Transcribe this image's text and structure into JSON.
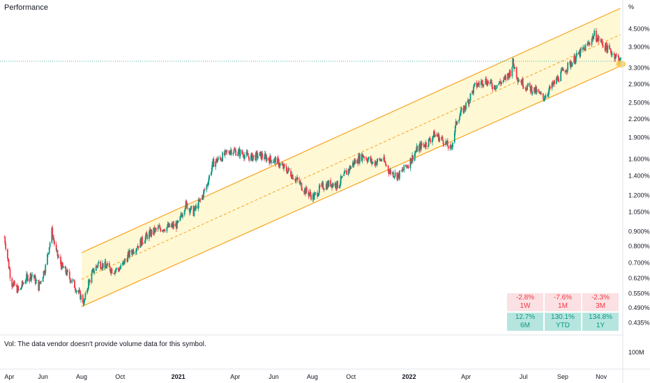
{
  "header": {
    "title": "Performance",
    "axis_unit": "%",
    "vol_note": "Vol: The data vendor doesn't provide volume data for this symbol.",
    "vol_scale": "100M"
  },
  "performance": [
    {
      "value": "-2.8%",
      "period": "1W",
      "trend": "neg"
    },
    {
      "value": "-7.6%",
      "period": "1M",
      "trend": "neg"
    },
    {
      "value": "-2.3%",
      "period": "3M",
      "trend": "neg"
    },
    {
      "value": "12.7%",
      "period": "6M",
      "trend": "pos"
    },
    {
      "value": "130.1%",
      "period": "YTD",
      "trend": "pos"
    },
    {
      "value": "134.8%",
      "period": "1Y",
      "trend": "pos"
    }
  ],
  "chart_data": {
    "type": "candlestick",
    "y_scale": "log",
    "ylim": [
      0.42,
      5.3
    ],
    "y_ticks": [
      {
        "label": "4.500%",
        "value": 4.5
      },
      {
        "label": "3.900%",
        "value": 3.9
      },
      {
        "label": "3.300%",
        "value": 3.3
      },
      {
        "label": "2.900%",
        "value": 2.9
      },
      {
        "label": "2.500%",
        "value": 2.5
      },
      {
        "label": "2.200%",
        "value": 2.2
      },
      {
        "label": "1.900%",
        "value": 1.9
      },
      {
        "label": "1.600%",
        "value": 1.6
      },
      {
        "label": "1.400%",
        "value": 1.4
      },
      {
        "label": "1.200%",
        "value": 1.2
      },
      {
        "label": "1.050%",
        "value": 1.05
      },
      {
        "label": "0.900%",
        "value": 0.9
      },
      {
        "label": "0.800%",
        "value": 0.8
      },
      {
        "label": "0.700%",
        "value": 0.7
      },
      {
        "label": "0.620%",
        "value": 0.62
      },
      {
        "label": "0.550%",
        "value": 0.55
      },
      {
        "label": "0.490%",
        "value": 0.49
      },
      {
        "label": "0.435%",
        "value": 0.435
      }
    ],
    "x_ticks": [
      {
        "label": "Apr",
        "date": "2020-04-01",
        "bold": false
      },
      {
        "label": "Jun",
        "date": "2020-06-01",
        "bold": false
      },
      {
        "label": "Aug",
        "date": "2020-08-01",
        "bold": false
      },
      {
        "label": "Oct",
        "date": "2020-10-01",
        "bold": false
      },
      {
        "label": "2021",
        "date": "2021-01-01",
        "bold": true
      },
      {
        "label": "Apr",
        "date": "2021-04-01",
        "bold": false
      },
      {
        "label": "Jun",
        "date": "2021-06-01",
        "bold": false
      },
      {
        "label": "Aug",
        "date": "2021-08-01",
        "bold": false
      },
      {
        "label": "Oct",
        "date": "2021-10-01",
        "bold": false
      },
      {
        "label": "2022",
        "date": "2022-01-01",
        "bold": true
      },
      {
        "label": "Apr",
        "date": "2022-04-01",
        "bold": false
      },
      {
        "label": "Jul",
        "date": "2022-07-01",
        "bold": false
      },
      {
        "label": "Sep",
        "date": "2022-09-01",
        "bold": false
      },
      {
        "label": "Nov",
        "date": "2022-11-01",
        "bold": false
      }
    ],
    "xlim": [
      "2020-03-25",
      "2022-12-05"
    ],
    "price_line": 3.48,
    "channel": {
      "start_date": "2020-08-01",
      "end_date": "2022-12-01",
      "upper": [
        0.76,
        5.3
      ],
      "middle": [
        0.615,
        4.3
      ],
      "lower": [
        0.495,
        3.35
      ]
    },
    "series": [
      {
        "date": "2020-04-01",
        "value": 0.86
      },
      {
        "date": "2020-04-12",
        "value": 0.6
      },
      {
        "date": "2020-04-24",
        "value": 0.56
      },
      {
        "date": "2020-05-05",
        "value": 0.62
      },
      {
        "date": "2020-05-15",
        "value": 0.64
      },
      {
        "date": "2020-05-25",
        "value": 0.58
      },
      {
        "date": "2020-06-05",
        "value": 0.68
      },
      {
        "date": "2020-06-15",
        "value": 0.9
      },
      {
        "date": "2020-06-22",
        "value": 0.76
      },
      {
        "date": "2020-07-01",
        "value": 0.68
      },
      {
        "date": "2020-07-10",
        "value": 0.64
      },
      {
        "date": "2020-07-20",
        "value": 0.59
      },
      {
        "date": "2020-08-01",
        "value": 0.53
      },
      {
        "date": "2020-08-05",
        "value": 0.51
      },
      {
        "date": "2020-08-12",
        "value": 0.6
      },
      {
        "date": "2020-08-20",
        "value": 0.66
      },
      {
        "date": "2020-08-28",
        "value": 0.7
      },
      {
        "date": "2020-09-10",
        "value": 0.68
      },
      {
        "date": "2020-09-20",
        "value": 0.66
      },
      {
        "date": "2020-10-01",
        "value": 0.67
      },
      {
        "date": "2020-10-15",
        "value": 0.75
      },
      {
        "date": "2020-11-01",
        "value": 0.82
      },
      {
        "date": "2020-11-15",
        "value": 0.88
      },
      {
        "date": "2020-12-01",
        "value": 0.92
      },
      {
        "date": "2020-12-15",
        "value": 0.93
      },
      {
        "date": "2021-01-01",
        "value": 0.95
      },
      {
        "date": "2021-01-12",
        "value": 1.12
      },
      {
        "date": "2021-01-25",
        "value": 1.05
      },
      {
        "date": "2021-02-05",
        "value": 1.15
      },
      {
        "date": "2021-02-15",
        "value": 1.3
      },
      {
        "date": "2021-02-25",
        "value": 1.55
      },
      {
        "date": "2021-03-10",
        "value": 1.62
      },
      {
        "date": "2021-03-25",
        "value": 1.72
      },
      {
        "date": "2021-04-10",
        "value": 1.68
      },
      {
        "date": "2021-04-25",
        "value": 1.62
      },
      {
        "date": "2021-05-10",
        "value": 1.65
      },
      {
        "date": "2021-05-25",
        "value": 1.6
      },
      {
        "date": "2021-06-05",
        "value": 1.58
      },
      {
        "date": "2021-06-15",
        "value": 1.5
      },
      {
        "date": "2021-06-25",
        "value": 1.45
      },
      {
        "date": "2021-07-08",
        "value": 1.35
      },
      {
        "date": "2021-07-20",
        "value": 1.25
      },
      {
        "date": "2021-08-03",
        "value": 1.18
      },
      {
        "date": "2021-08-15",
        "value": 1.28
      },
      {
        "date": "2021-08-30",
        "value": 1.32
      },
      {
        "date": "2021-09-10",
        "value": 1.3
      },
      {
        "date": "2021-09-22",
        "value": 1.42
      },
      {
        "date": "2021-10-05",
        "value": 1.55
      },
      {
        "date": "2021-10-20",
        "value": 1.65
      },
      {
        "date": "2021-11-05",
        "value": 1.55
      },
      {
        "date": "2021-11-20",
        "value": 1.6
      },
      {
        "date": "2021-12-01",
        "value": 1.45
      },
      {
        "date": "2021-12-15",
        "value": 1.4
      },
      {
        "date": "2022-01-01",
        "value": 1.55
      },
      {
        "date": "2022-01-15",
        "value": 1.75
      },
      {
        "date": "2022-01-30",
        "value": 1.82
      },
      {
        "date": "2022-02-10",
        "value": 1.95
      },
      {
        "date": "2022-02-25",
        "value": 1.85
      },
      {
        "date": "2022-03-08",
        "value": 1.72
      },
      {
        "date": "2022-03-18",
        "value": 2.2
      },
      {
        "date": "2022-04-01",
        "value": 2.45
      },
      {
        "date": "2022-04-15",
        "value": 2.85
      },
      {
        "date": "2022-05-01",
        "value": 3.0
      },
      {
        "date": "2022-05-15",
        "value": 2.85
      },
      {
        "date": "2022-06-01",
        "value": 3.0
      },
      {
        "date": "2022-06-10",
        "value": 3.2
      },
      {
        "date": "2022-06-14",
        "value": 3.45
      },
      {
        "date": "2022-06-22",
        "value": 3.05
      },
      {
        "date": "2022-07-05",
        "value": 2.85
      },
      {
        "date": "2022-07-20",
        "value": 2.75
      },
      {
        "date": "2022-08-01",
        "value": 2.6
      },
      {
        "date": "2022-08-15",
        "value": 2.85
      },
      {
        "date": "2022-09-01",
        "value": 3.2
      },
      {
        "date": "2022-09-15",
        "value": 3.45
      },
      {
        "date": "2022-09-30",
        "value": 3.75
      },
      {
        "date": "2022-10-10",
        "value": 3.95
      },
      {
        "date": "2022-10-21",
        "value": 4.3
      },
      {
        "date": "2022-11-01",
        "value": 4.05
      },
      {
        "date": "2022-11-10",
        "value": 3.85
      },
      {
        "date": "2022-11-20",
        "value": 3.7
      },
      {
        "date": "2022-11-28",
        "value": 3.55
      },
      {
        "date": "2022-12-02",
        "value": 3.48
      }
    ]
  },
  "colors": {
    "up": "#089981",
    "down": "#f23645",
    "channel_line": "#f7a21b",
    "channel_fill": "#fff8d5",
    "price_line": "#089981",
    "axis_text": "#131722",
    "grid_sep": "#e0e3eb"
  }
}
